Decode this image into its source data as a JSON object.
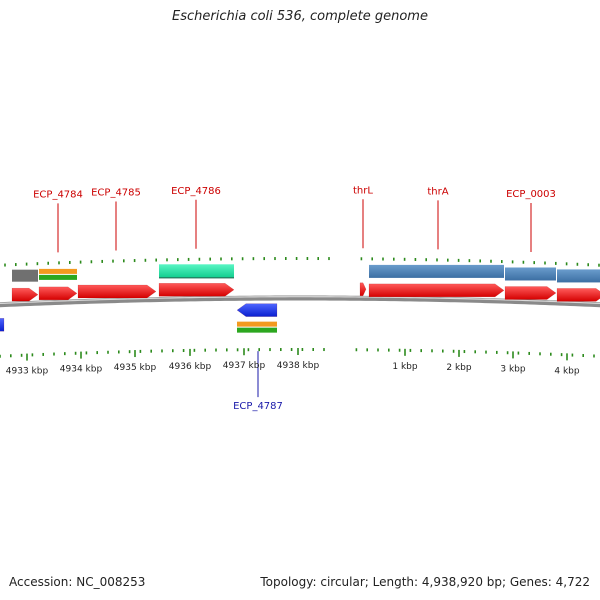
{
  "title": "Escherichia coli 536, complete genome",
  "footer": {
    "accession": "Accession: NC_008253",
    "summary": "Topology: circular; Length: 4,938,920 bp; Genes: 4,722"
  },
  "colors": {
    "forward_cds": "#ee1111",
    "reverse_cds": "#1a2fe6",
    "gene_label_forward": "#cc0000",
    "gene_label_reverse": "#1a1aaa",
    "ticks": "#2c8a1c",
    "backbone": "#8a8a8a",
    "gene_bar": "#4a7fb2",
    "cds_bar": "#22e3a3",
    "misc_grey": "#707070",
    "misc_orange": "#f39a1f",
    "misc_green": "#2ca71f"
  },
  "axis_labels": [
    {
      "kbp": 4933,
      "label": "4933 kbp"
    },
    {
      "kbp": 4934,
      "label": "4934 kbp"
    },
    {
      "kbp": 4935,
      "label": "4935 kbp"
    },
    {
      "kbp": 4936,
      "label": "4936 kbp"
    },
    {
      "kbp": 4937,
      "label": "4937 kbp"
    },
    {
      "kbp": 4938,
      "label": "4938 kbp"
    },
    {
      "kbp": 1,
      "label": "1 kbp"
    },
    {
      "kbp": 2,
      "label": "2 kbp"
    },
    {
      "kbp": 3,
      "label": "3 kbp"
    },
    {
      "kbp": 4,
      "label": "4 kbp"
    }
  ],
  "gene_labels": [
    {
      "name": "ECP_4784",
      "strand": "forward"
    },
    {
      "name": "ECP_4785",
      "strand": "forward"
    },
    {
      "name": "ECP_4786",
      "strand": "forward"
    },
    {
      "name": "thrL",
      "strand": "forward"
    },
    {
      "name": "thrA",
      "strand": "forward"
    },
    {
      "name": "ECP_0003",
      "strand": "forward"
    },
    {
      "name": "ECP_4787",
      "strand": "reverse"
    }
  ]
}
